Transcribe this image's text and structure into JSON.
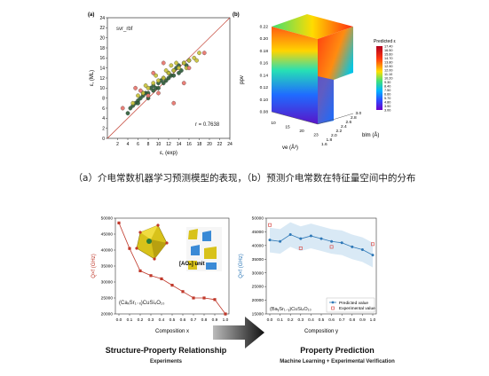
{
  "chart_data": [
    {
      "type": "scatter",
      "panel": "(a)",
      "legend": "svr_rbf",
      "xlabel": "ε, (exp)",
      "ylabel": "ε, (ML)",
      "xlim": [
        0,
        24
      ],
      "ylim": [
        0,
        24
      ],
      "xticks": [
        2,
        4,
        6,
        8,
        10,
        12,
        14,
        16,
        18,
        20,
        22,
        24
      ],
      "yticks": [
        0,
        2,
        4,
        6,
        8,
        10,
        12,
        14,
        16,
        18,
        20,
        22,
        24
      ],
      "annotation": "r = 0.7638",
      "series": [
        {
          "color": "#2e5e3a",
          "x": [
            4,
            4.5,
            5,
            5.5,
            6,
            6.5,
            7,
            7.5,
            8,
            8.5,
            9,
            9.5,
            10,
            10.5,
            11,
            11.5,
            12,
            12.5,
            13,
            13.5,
            14,
            14.5,
            15,
            15.5,
            16,
            6,
            8,
            10,
            12,
            14,
            7,
            9,
            11,
            13
          ],
          "y": [
            5,
            6,
            6.5,
            7,
            7.5,
            8,
            8.5,
            9,
            9,
            10,
            10.5,
            10,
            11,
            11.5,
            12,
            11.5,
            13,
            12.5,
            13.5,
            14,
            14.5,
            13.5,
            15,
            14.5,
            15.5,
            7,
            8,
            10,
            12,
            13,
            9,
            9.5,
            11,
            12.5
          ]
        },
        {
          "color": "#c8c23a",
          "x": [
            5,
            6,
            7,
            8,
            9,
            10,
            11,
            12,
            13,
            14,
            15,
            16,
            17,
            18,
            9.5,
            11.5,
            13.5,
            15.5,
            17.5,
            7.5,
            12.5
          ],
          "y": [
            7,
            8.5,
            9,
            10,
            11,
            11.5,
            12,
            13,
            13.5,
            14,
            15,
            15.5,
            16,
            17,
            12.5,
            13.5,
            15,
            14,
            15.5,
            10.5,
            14.5
          ]
        },
        {
          "color": "#e8746b",
          "x": [
            3,
            5.5,
            6.5,
            8,
            9,
            10,
            11,
            13,
            15,
            16,
            19
          ],
          "y": [
            6,
            10,
            9.5,
            8.5,
            13,
            9,
            15,
            7,
            11,
            14,
            17
          ]
        }
      ]
    },
    {
      "type": "heatmap",
      "panel": "(b)",
      "xlabel": "ve (Å³)",
      "ylabel": "blm (Å)",
      "zlabel": "ppv",
      "colorbar_title": "Predicted ε",
      "colorbar_ticks": [
        "17.40",
        "16.50",
        "15.60",
        "14.70",
        "13.80",
        "12.90",
        "12.00",
        "11.10",
        "10.20",
        "9.30",
        "8.40",
        "7.50",
        "6.60",
        "5.70",
        "4.80",
        "3.90",
        "3.00"
      ],
      "xticks": [
        "10",
        "15",
        "20",
        "23"
      ],
      "yticks": [
        "1.6",
        "1.8",
        "2.0",
        "2.2",
        "2.4",
        "2.6",
        "2.8",
        "3.0"
      ],
      "zticks": [
        "0.08",
        "0.10",
        "0.12",
        "0.14",
        "0.16",
        "0.18",
        "0.20",
        "0.22"
      ]
    },
    {
      "type": "line",
      "title": "(CaₓSr₁₋ₓ)CuSi₄O₁₀",
      "xlabel": "Composition x",
      "ylabel": "Q×f (GHz)",
      "ylim": [
        20000,
        50000
      ],
      "categories": [
        "0.0",
        "0.1",
        "0.2",
        "0.3",
        "0.4",
        "0.5",
        "0.6",
        "0.7",
        "0.8",
        "0.9",
        "1.0"
      ],
      "yticks": [
        20000,
        25000,
        30000,
        35000,
        40000,
        45000,
        50000
      ],
      "series": [
        {
          "color": "#c0392b",
          "values": [
            48500,
            40500,
            33500,
            32000,
            31000,
            29000,
            27000,
            25000,
            25000,
            24500,
            20000
          ]
        }
      ]
    },
    {
      "type": "line",
      "title": "(BaᵧSr₁₋ᵧ)CuSi₄O₁₀",
      "xlabel": "Composition y",
      "ylabel": "Q×f (GHz)",
      "ylim": [
        15000,
        50000
      ],
      "categories": [
        "0.0",
        "0.1",
        "0.2",
        "0.3",
        "0.4",
        "0.5",
        "0.6",
        "0.7",
        "0.8",
        "0.9",
        "1.0"
      ],
      "yticks": [
        15000,
        20000,
        25000,
        30000,
        35000,
        40000,
        45000,
        50000
      ],
      "series": [
        {
          "name": "Predicted value",
          "color": "#2e78b7",
          "values": [
            42000,
            41500,
            44000,
            42500,
            43500,
            42500,
            41500,
            41000,
            39500,
            38500,
            36500
          ]
        },
        {
          "name": "Experimental value",
          "color": "#d9534f",
          "x": [
            "0.0",
            "0.3",
            "0.6",
            "1.0"
          ],
          "values": [
            47500,
            39000,
            39500,
            40500
          ]
        }
      ]
    }
  ],
  "insets": {
    "unit_label": "[AO₈] unit"
  },
  "caption": "（a）介电常数机器学习预测模型的表现，（b）预测介电常数在特征量空间中的分布",
  "bottom": {
    "left_title": "Structure-Property Relationship",
    "left_sub": "Experiments",
    "right_title": "Property Prediction",
    "right_sub": "Machine Learning + Experimental Verification"
  }
}
